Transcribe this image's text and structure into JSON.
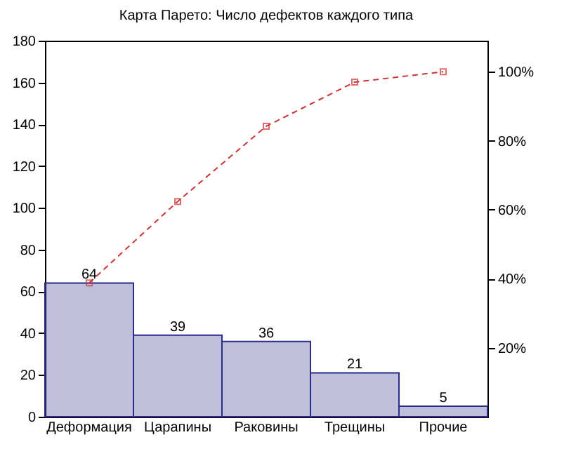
{
  "chart_data": {
    "type": "bar",
    "title": "Карта Парето: Число дефектов каждого типа",
    "categories": [
      "Деформация",
      "Царапины",
      "Раковины",
      "Трещины",
      "Прочие"
    ],
    "series": [
      {
        "color": "#2b2b8c",
        "values": [
          64,
          39,
          36,
          21,
          5
        ],
        "value_labels": [
          "64",
          "39",
          "36",
          "21",
          "5"
        ]
      },
      {
        "type": "line",
        "axis": "y2",
        "color": "#cc3333",
        "marker": "square",
        "line_style": "dashed",
        "values": [
          38.8,
          62.4,
          84.2,
          97.0,
          100
        ]
      }
    ],
    "ylim": [
      0,
      180
    ],
    "yticks": [
      0,
      20,
      40,
      60,
      80,
      100,
      120,
      140,
      160,
      180
    ],
    "y2lim": [
      0,
      109
    ],
    "y2ticks": [
      {
        "value": 20,
        "label": "20%"
      },
      {
        "value": 40,
        "label": "40%"
      },
      {
        "value": 60,
        "label": "60%"
      },
      {
        "value": 80,
        "label": "80%"
      },
      {
        "value": 100,
        "label": "100%"
      }
    ]
  }
}
